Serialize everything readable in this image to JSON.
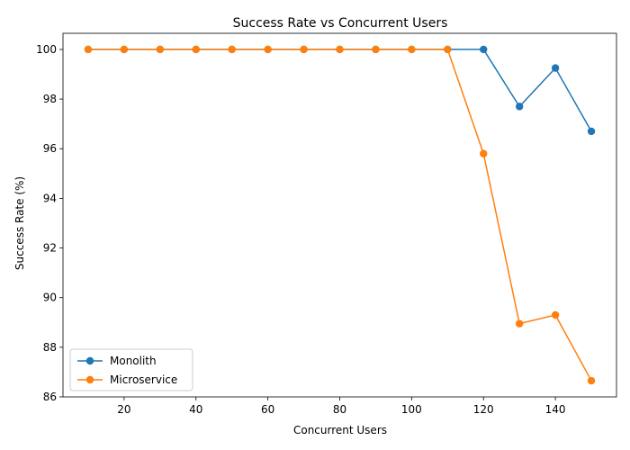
{
  "chart_data": {
    "type": "line",
    "title": "Success Rate vs Concurrent Users",
    "xlabel": "Concurrent Users",
    "ylabel": "Success Rate (%)",
    "xlim": [
      3,
      157
    ],
    "ylim": [
      86,
      100.65
    ],
    "x_ticks": [
      20,
      40,
      60,
      80,
      100,
      120,
      140
    ],
    "y_ticks": [
      86,
      88,
      90,
      92,
      94,
      96,
      98,
      100
    ],
    "grid": false,
    "legend_position": "bottom-left",
    "x": [
      10,
      20,
      30,
      40,
      50,
      60,
      70,
      80,
      90,
      100,
      110,
      120,
      130,
      140,
      150
    ],
    "series": [
      {
        "name": "Monolith",
        "color": "#1f77b4",
        "values": [
          100,
          100,
          100,
          100,
          100,
          100,
          100,
          100,
          100,
          100,
          100,
          100,
          97.7,
          99.25,
          96.7
        ]
      },
      {
        "name": "Microservice",
        "color": "#ff7f0e",
        "values": [
          100,
          100,
          100,
          100,
          100,
          100,
          100,
          100,
          100,
          100,
          100,
          95.8,
          88.95,
          89.3,
          86.65
        ]
      }
    ]
  }
}
